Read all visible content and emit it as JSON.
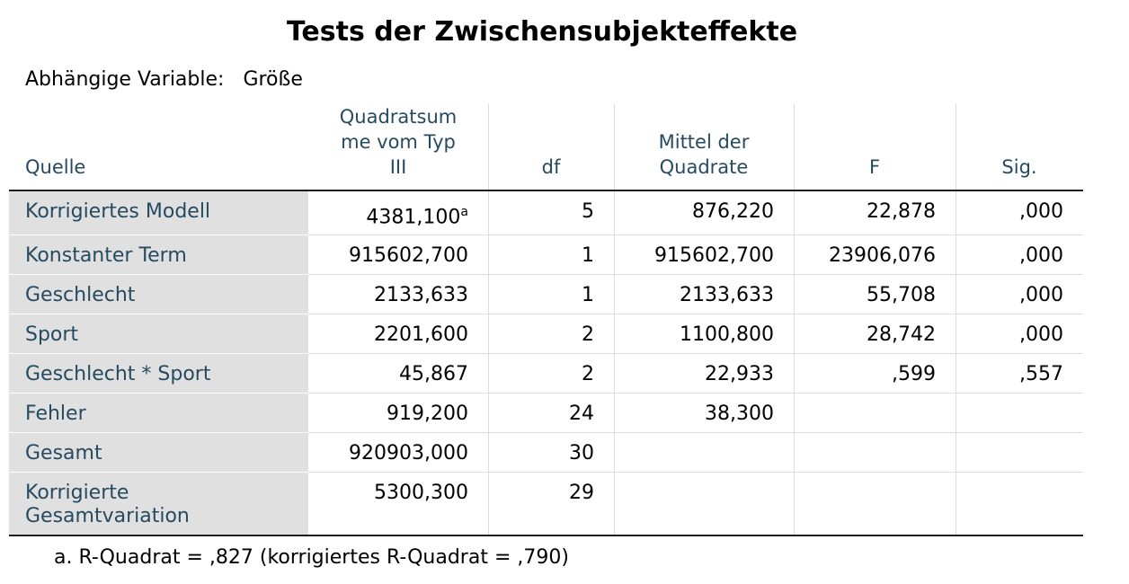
{
  "title": "Tests der Zwischensubjekteffekte",
  "dependent_label": "Abhängige Variable:",
  "dependent_value": "Größe",
  "table": {
    "header": [
      [
        "Quelle"
      ],
      [
        "Quadratsum",
        "me vom Typ",
        "III"
      ],
      [
        "df"
      ],
      [
        "Mittel der",
        "Quadrate"
      ],
      [
        "F"
      ],
      [
        "Sig."
      ]
    ],
    "rows": [
      [
        "Korrigiertes Modell",
        {
          "text": "4381,100",
          "sup": "a"
        },
        "5",
        "876,220",
        "22,878",
        ",000"
      ],
      [
        "Konstanter Term",
        "915602,700",
        "1",
        "915602,700",
        "23906,076",
        ",000"
      ],
      [
        "Geschlecht",
        "2133,633",
        "1",
        "2133,633",
        "55,708",
        ",000"
      ],
      [
        "Sport",
        "2201,600",
        "2",
        "1100,800",
        "28,742",
        ",000"
      ],
      [
        "Geschlecht * Sport",
        "45,867",
        "2",
        "22,933",
        ",599",
        ",557"
      ],
      [
        "Fehler",
        "919,200",
        "24",
        "38,300",
        null,
        null
      ],
      [
        "Gesamt",
        "920903,000",
        "30",
        null,
        null,
        null
      ],
      [
        "Korrigierte Gesamtvariation",
        "5300,300",
        "29",
        null,
        null,
        null
      ]
    ],
    "footnote": "a. R-Quadrat = ,827 (korrigiertes R-Quadrat = ,790)"
  }
}
